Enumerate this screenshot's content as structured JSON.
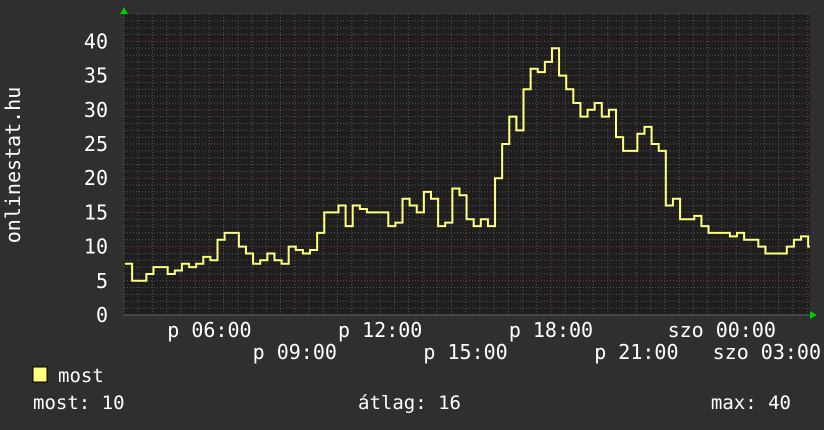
{
  "chart_data": {
    "type": "line",
    "ylabel": "onlinestat.hu",
    "ylim": [
      0,
      40
    ],
    "yticks": [
      "0",
      "5",
      "10",
      "15",
      "20",
      "25",
      "30",
      "35",
      "40"
    ],
    "xticks": [
      "p 06:00",
      "p 09:00",
      "p 12:00",
      "p 15:00",
      "p 18:00",
      "p 21:00",
      "szo 00:00",
      "szo 03:00"
    ],
    "x_start": "p 03:00",
    "x_end": "szo 03:00",
    "x_step_minutes": 15,
    "grid": true,
    "series": [
      {
        "name": "most",
        "color": "#ffff80",
        "values": [
          7.5,
          5,
          5,
          6,
          7,
          7,
          6,
          6.5,
          7.5,
          7,
          7.5,
          8.5,
          8,
          11,
          12,
          12,
          10,
          9,
          7.5,
          8,
          9,
          8,
          7.5,
          10,
          9.5,
          9,
          9.5,
          12,
          15,
          15,
          16,
          13,
          16,
          15.5,
          15,
          15,
          15,
          13,
          13.5,
          17,
          16,
          15,
          18,
          17,
          13,
          13.5,
          18.5,
          17.5,
          14,
          13,
          14,
          13,
          20,
          25,
          29,
          27,
          33,
          36,
          35.5,
          37,
          39,
          35,
          33,
          31,
          29,
          30,
          31,
          29,
          30,
          26,
          24,
          24,
          26.5,
          27.5,
          25,
          24,
          16,
          17,
          14,
          14,
          14.5,
          13,
          12,
          12,
          12,
          11.5,
          12,
          11,
          11,
          10,
          9,
          9,
          9,
          10,
          11,
          11.5,
          10
        ]
      }
    ],
    "legend": {
      "label": "most",
      "color": "#ffff80"
    },
    "stats": {
      "current": "most: 10",
      "average": "átlag: 16",
      "max": "max: 40"
    }
  },
  "colors": {
    "background": "#2f2f2f",
    "plot_background": "#1e1e1e",
    "major_grid": "#8a3a3a",
    "minor_grid": "#555555",
    "arrow": "#00cc00"
  }
}
